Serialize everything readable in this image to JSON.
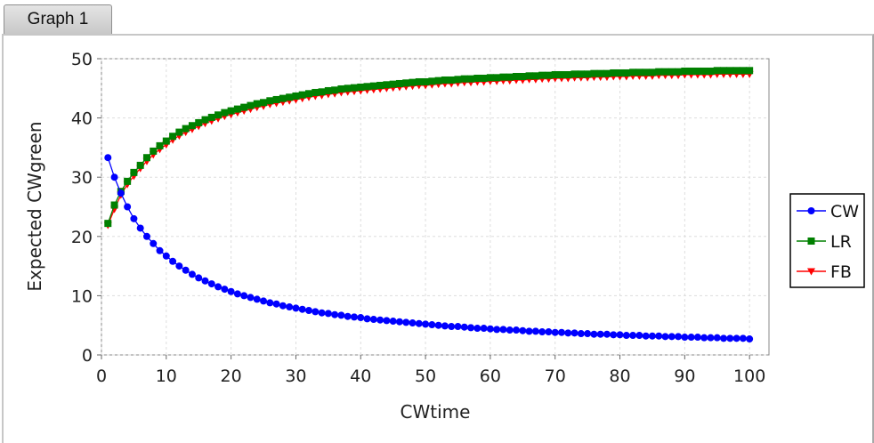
{
  "tab": {
    "label": "Graph 1"
  },
  "chart_data": {
    "type": "line",
    "title": "",
    "xlabel": "CWtime",
    "ylabel": "Expected CWgreen",
    "xlim": [
      0,
      103
    ],
    "ylim": [
      0,
      50
    ],
    "xticks": [
      0,
      10,
      20,
      30,
      40,
      50,
      60,
      70,
      80,
      90,
      100
    ],
    "yticks": [
      0,
      10,
      20,
      30,
      40,
      50
    ],
    "grid": true,
    "legend_position": "right",
    "x": {
      "start": 1,
      "end": 100,
      "step": 1
    },
    "series": [
      {
        "name": "CW",
        "color": "#0000ff",
        "marker": "circle",
        "values": [
          33.3,
          30.0,
          27.3,
          25.0,
          23.0,
          21.4,
          20.0,
          18.8,
          17.6,
          16.7,
          15.8,
          15.0,
          14.3,
          13.6,
          13.0,
          12.5,
          12.0,
          11.5,
          11.1,
          10.7,
          10.3,
          10.0,
          9.7,
          9.4,
          9.1,
          8.8,
          8.6,
          8.3,
          8.1,
          7.9,
          7.7,
          7.5,
          7.3,
          7.1,
          7.0,
          6.8,
          6.7,
          6.5,
          6.4,
          6.3,
          6.1,
          6.0,
          5.9,
          5.8,
          5.7,
          5.6,
          5.5,
          5.4,
          5.3,
          5.2,
          5.1,
          5.0,
          4.9,
          4.8,
          4.8,
          4.7,
          4.6,
          4.5,
          4.5,
          4.4,
          4.3,
          4.3,
          4.2,
          4.2,
          4.1,
          4.0,
          4.0,
          3.9,
          3.9,
          3.8,
          3.8,
          3.7,
          3.7,
          3.6,
          3.6,
          3.5,
          3.5,
          3.5,
          3.4,
          3.4,
          3.3,
          3.3,
          3.3,
          3.2,
          3.2,
          3.2,
          3.1,
          3.1,
          3.1,
          3.0,
          3.0,
          3.0,
          2.9,
          2.9,
          2.9,
          2.8,
          2.8,
          2.8,
          2.8,
          2.7
        ]
      },
      {
        "name": "LR",
        "color": "#008000",
        "marker": "square",
        "values": [
          22.2,
          25.3,
          27.6,
          29.3,
          30.8,
          32.0,
          33.3,
          34.4,
          35.3,
          36.1,
          36.9,
          37.6,
          38.2,
          38.7,
          39.2,
          39.7,
          40.1,
          40.5,
          40.9,
          41.2,
          41.5,
          41.8,
          42.1,
          42.4,
          42.6,
          42.9,
          43.1,
          43.3,
          43.5,
          43.7,
          43.9,
          44.1,
          44.3,
          44.4,
          44.6,
          44.7,
          44.9,
          45.0,
          45.1,
          45.2,
          45.3,
          45.4,
          45.5,
          45.6,
          45.7,
          45.8,
          45.9,
          46.0,
          46.1,
          46.1,
          46.2,
          46.3,
          46.4,
          46.4,
          46.5,
          46.6,
          46.6,
          46.7,
          46.7,
          46.8,
          46.8,
          46.9,
          46.9,
          47.0,
          47.0,
          47.1,
          47.1,
          47.2,
          47.2,
          47.3,
          47.3,
          47.3,
          47.4,
          47.4,
          47.4,
          47.5,
          47.5,
          47.5,
          47.6,
          47.6,
          47.6,
          47.7,
          47.7,
          47.7,
          47.7,
          47.8,
          47.8,
          47.8,
          47.8,
          47.9,
          47.9,
          47.9,
          47.9,
          47.9,
          48.0,
          48.0,
          48.0,
          48.0,
          48.0,
          48.0
        ]
      },
      {
        "name": "FB",
        "color": "#ff0000",
        "marker": "triangle-down",
        "values": [
          21.9,
          24.6,
          27.0,
          28.8,
          30.2,
          31.5,
          32.7,
          33.8,
          34.7,
          35.5,
          36.3,
          37.0,
          37.6,
          38.1,
          38.6,
          39.1,
          39.5,
          39.9,
          40.3,
          40.6,
          40.9,
          41.2,
          41.5,
          41.8,
          42.0,
          42.3,
          42.5,
          42.7,
          42.9,
          43.1,
          43.3,
          43.5,
          43.7,
          43.8,
          44.0,
          44.1,
          44.3,
          44.4,
          44.5,
          44.6,
          44.7,
          44.8,
          44.9,
          45.0,
          45.1,
          45.2,
          45.3,
          45.4,
          45.5,
          45.5,
          45.6,
          45.7,
          45.8,
          45.8,
          45.9,
          46.0,
          46.0,
          46.1,
          46.1,
          46.2,
          46.2,
          46.3,
          46.3,
          46.4,
          46.4,
          46.5,
          46.5,
          46.6,
          46.6,
          46.7,
          46.7,
          46.7,
          46.8,
          46.8,
          46.8,
          46.9,
          46.9,
          46.9,
          47.0,
          47.0,
          47.0,
          47.1,
          47.1,
          47.1,
          47.1,
          47.2,
          47.2,
          47.2,
          47.2,
          47.3,
          47.3,
          47.3,
          47.3,
          47.3,
          47.4,
          47.4,
          47.4,
          47.4,
          47.4,
          47.4
        ]
      }
    ]
  }
}
